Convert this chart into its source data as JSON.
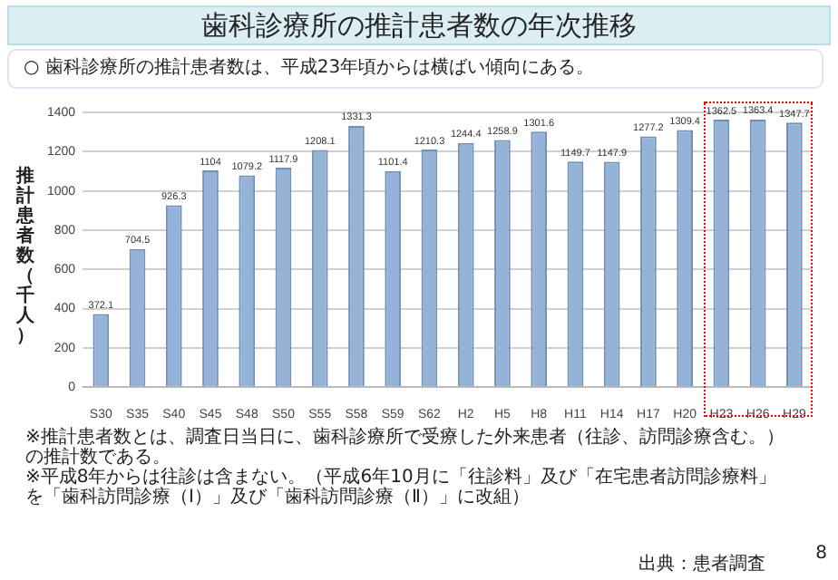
{
  "chart_data": {
    "type": "bar",
    "title": "歯科診療所の推計患者数の年次推移",
    "subtitle": "○ 歯科診療所の推計患者数は、平成23年頃からは横ばい傾向にある。",
    "ylabel": "推計患者数（千人）",
    "categories": [
      "S30",
      "S35",
      "S40",
      "S45",
      "S48",
      "S50",
      "S55",
      "S58",
      "S59",
      "S62",
      "H2",
      "H5",
      "H8",
      "H11",
      "H14",
      "H17",
      "H20",
      "H23",
      "H26",
      "H29"
    ],
    "values": [
      372.1,
      704.5,
      926.3,
      1104,
      1079.2,
      1117.9,
      1208.1,
      1331.3,
      1101.4,
      1210.3,
      1244.4,
      1258.9,
      1301.6,
      1149.7,
      1147.9,
      1277.2,
      1309.4,
      1362.5,
      1363.4,
      1347.7
    ],
    "color": "#95b3d7",
    "data_labels": true,
    "ylim": [
      0,
      1400
    ],
    "yticks": [
      0,
      200,
      400,
      600,
      800,
      1000,
      1200,
      1400
    ],
    "grid": "y",
    "legend": false,
    "annotations": [
      "※推計患者数とは、調査日当日に、歯科診療所で受療した外来患者（往診、訪問診療含む。）の推計数である。",
      "※平成8年からは往診は含まない。（平成6年10月に「往診料」及び「在宅患者訪問診療料」を「歯科訪問診療（Ⅰ）」及び「歯科訪問診療（Ⅱ）」に改組）",
      "出典：患者調査",
      "8"
    ]
  }
}
